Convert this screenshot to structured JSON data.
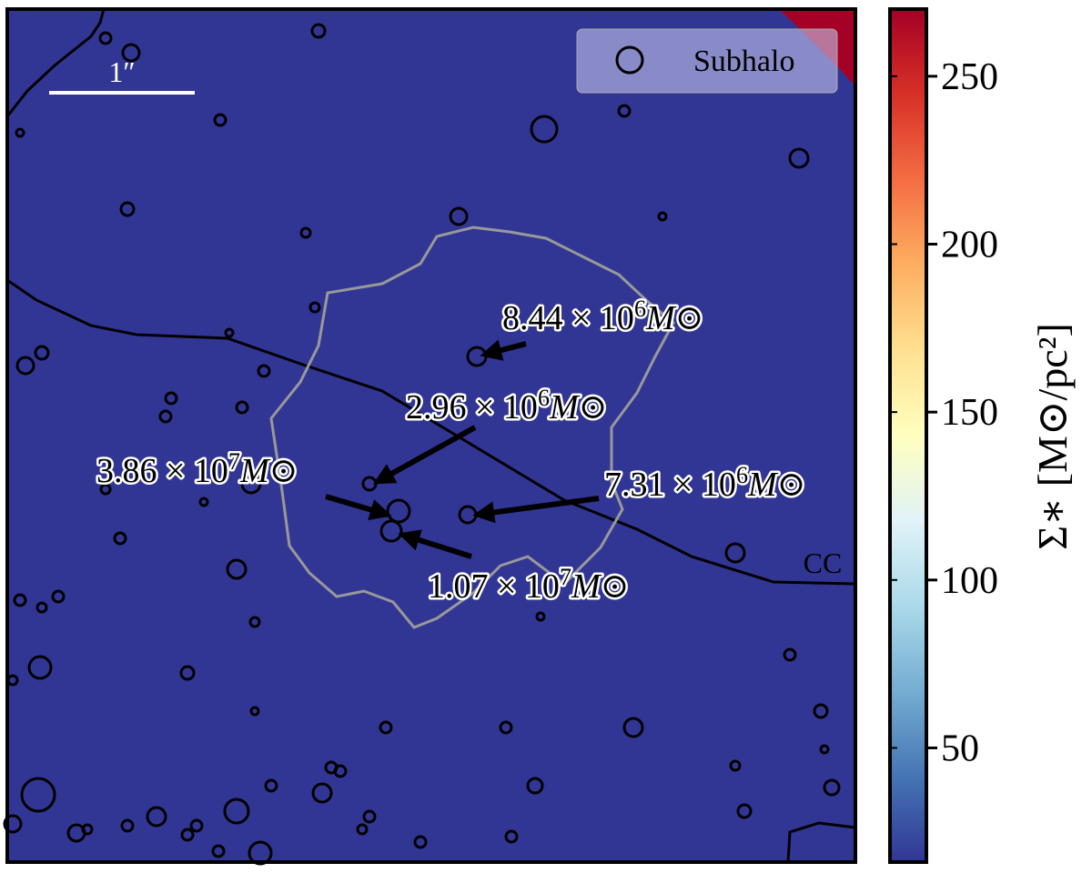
{
  "chart_data": {
    "type": "heatmap",
    "legend": {
      "label": "Subhalo",
      "position": "upper right"
    },
    "scale_bar_label": "1″",
    "curve_label": "CC",
    "annotations": [
      {
        "mantissa": "8.44 × 10",
        "exponent": "6",
        "unit": "M⊙"
      },
      {
        "mantissa": "2.96 × 10",
        "exponent": "6",
        "unit": "M⊙"
      },
      {
        "mantissa": "3.86 × 10",
        "exponent": "7",
        "unit": "M⊙"
      },
      {
        "mantissa": "7.31 × 10",
        "exponent": "6",
        "unit": "M⊙"
      },
      {
        "mantissa": "1.07 × 10",
        "exponent": "7",
        "unit": "M⊙"
      }
    ],
    "colorbar": {
      "label": "Σ∗ [M⊙/pc²]",
      "ylim": [
        16,
        270
      ],
      "yticks": [
        50,
        100,
        150,
        200,
        250
      ],
      "colors": [
        "#313695",
        "#4575b4",
        "#74add1",
        "#abd9e9",
        "#e0f3f8",
        "#ffffbf",
        "#fee090",
        "#fdae61",
        "#f46d43",
        "#d73027",
        "#a50026"
      ]
    }
  }
}
